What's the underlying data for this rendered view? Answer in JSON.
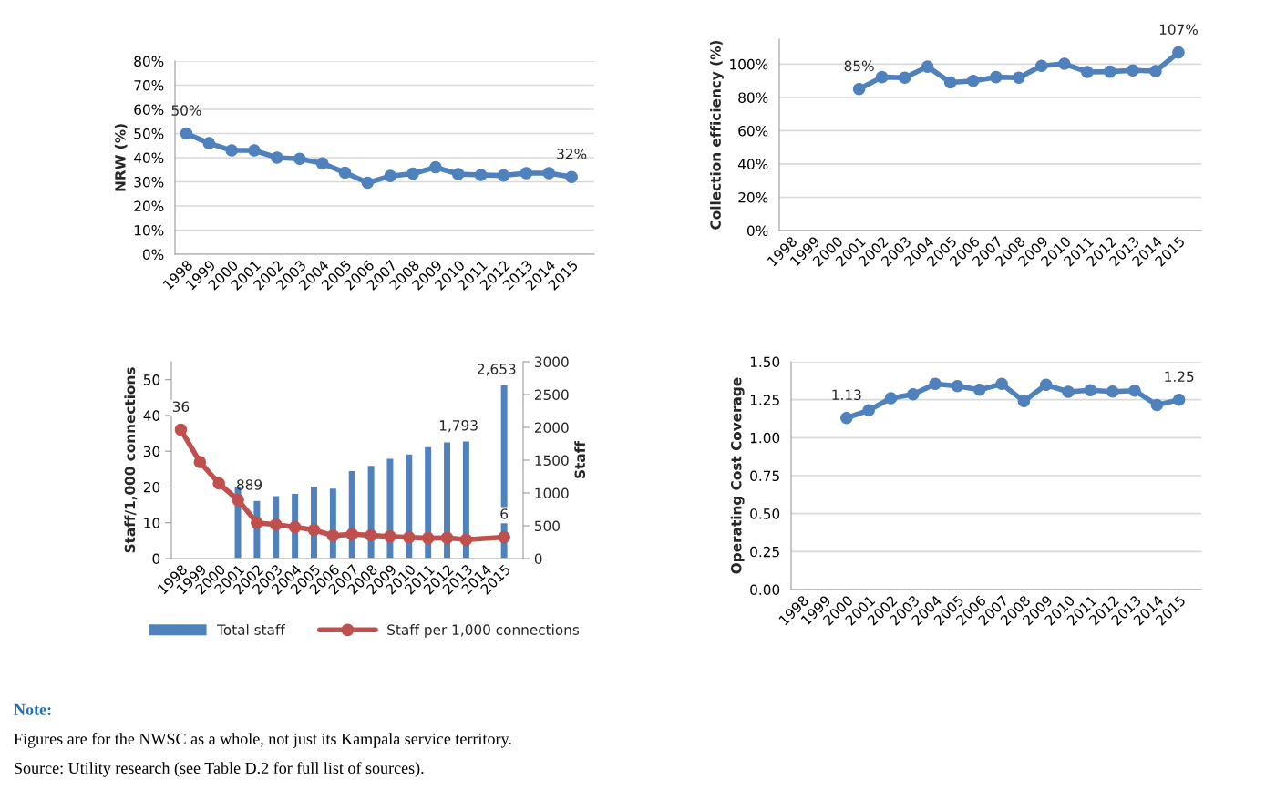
{
  "chart_data": [
    {
      "type": "line",
      "ylabel": "NRW (%)",
      "categories": [
        "1998",
        "1999",
        "2000",
        "2001",
        "2002",
        "2003",
        "2004",
        "2005",
        "2006",
        "2007",
        "2008",
        "2009",
        "2010",
        "2011",
        "2012",
        "2013",
        "2014",
        "2015"
      ],
      "series": [
        {
          "color": "#4f81bd",
          "values": [
            50,
            46,
            43,
            43,
            40,
            39.5,
            37.6,
            33.8,
            29.6,
            32.4,
            33.4,
            36,
            33.2,
            32.8,
            32.6,
            33.6,
            33.6,
            32
          ],
          "value_labels": [
            "50%",
            null,
            null,
            null,
            null,
            null,
            null,
            null,
            null,
            null,
            null,
            null,
            null,
            null,
            null,
            null,
            null,
            "32%"
          ]
        }
      ],
      "ylim": [
        0,
        80
      ],
      "yticks": [
        {
          "value": 0,
          "label": "0%"
        },
        {
          "value": 10,
          "label": "10%"
        },
        {
          "value": 20,
          "label": "20%"
        },
        {
          "value": 30,
          "label": "30%"
        },
        {
          "value": 40,
          "label": "40%"
        },
        {
          "value": 50,
          "label": "50%"
        },
        {
          "value": 60,
          "label": "60%"
        },
        {
          "value": 70,
          "label": "70%"
        },
        {
          "value": 80,
          "label": "80%"
        }
      ],
      "grid": "y",
      "marker": "circle",
      "line_style": "solid"
    },
    {
      "type": "line",
      "ylabel": "Collection efficiency (%)",
      "categories": [
        "1998",
        "1999",
        "2000",
        "2001",
        "2002",
        "2003",
        "2004",
        "2005",
        "2006",
        "2007",
        "2008",
        "2009",
        "2010",
        "2011",
        "2012",
        "2013",
        "2014",
        "2015"
      ],
      "series": [
        {
          "color": "#4f81bd",
          "values": [
            null,
            null,
            null,
            85,
            92.2,
            91.9,
            98.5,
            89,
            90,
            92.2,
            91.9,
            99,
            100.2,
            95.3,
            95.5,
            96.2,
            95.8,
            107
          ],
          "value_labels": [
            null,
            null,
            null,
            "85%",
            null,
            null,
            null,
            null,
            null,
            null,
            null,
            null,
            null,
            null,
            null,
            null,
            null,
            "107%"
          ]
        }
      ],
      "ylim": [
        0,
        115
      ],
      "yticks": [
        {
          "value": 0,
          "label": "0%"
        },
        {
          "value": 20,
          "label": "20%"
        },
        {
          "value": 40,
          "label": "40%"
        },
        {
          "value": 60,
          "label": "60%"
        },
        {
          "value": 80,
          "label": "80%"
        },
        {
          "value": 100,
          "label": "100%"
        }
      ],
      "grid": "y",
      "marker": "circle",
      "line_style": "solid"
    },
    {
      "type": "bar",
      "ylabel": "Staff/1,000 connections",
      "y2label": "Staff",
      "categories": [
        "1998",
        "1999",
        "2000",
        "2001",
        "2002",
        "2003",
        "2004",
        "2005",
        "2006",
        "2007",
        "2008",
        "2009",
        "2010",
        "2011",
        "2012",
        "2013",
        "2014",
        "2015"
      ],
      "series": [
        {
          "name": "Total staff",
          "type": "bar",
          "axis": "y2",
          "color": "#4f81bd",
          "values": [
            null,
            null,
            null,
            1101,
            889,
            960,
            995,
            1101,
            1076,
            1343,
            1424,
            1530,
            1596,
            1707,
            1780,
            1793,
            null,
            2653
          ],
          "value_labels": [
            null,
            null,
            null,
            null,
            "889",
            null,
            null,
            null,
            null,
            null,
            null,
            null,
            null,
            null,
            null,
            "1,793",
            null,
            "2,653"
          ]
        },
        {
          "name": "Staff per 1,000 connections",
          "type": "line",
          "color": "#c0504d",
          "values": [
            36,
            27,
            21,
            16.4,
            10,
            9.5,
            8.8,
            8,
            6.4,
            6.8,
            6.5,
            6.2,
            5.9,
            5.7,
            5.8,
            5.3,
            null,
            6
          ],
          "value_labels": [
            "36",
            null,
            null,
            null,
            null,
            null,
            null,
            null,
            null,
            null,
            null,
            null,
            null,
            null,
            null,
            null,
            null,
            "6"
          ]
        }
      ],
      "ylim": [
        0,
        55
      ],
      "yticks": [
        0,
        10,
        20,
        30,
        40,
        50
      ],
      "y2lim": [
        0,
        3000
      ],
      "y2ticks": [
        0,
        500,
        1000,
        1500,
        2000,
        2500,
        3000
      ],
      "grid": false,
      "legend": "bottom",
      "marker": "circle",
      "line_style": "solid"
    },
    {
      "type": "line",
      "ylabel": "Operating Cost Coverage",
      "categories": [
        "1998",
        "1999",
        "2000",
        "2001",
        "2002",
        "2003",
        "2004",
        "2005",
        "2006",
        "2007",
        "2008",
        "2009",
        "2010",
        "2011",
        "2012",
        "2013",
        "2014",
        "2015"
      ],
      "series": [
        {
          "color": "#4f81bd",
          "values": [
            null,
            null,
            1.13,
            1.18,
            1.26,
            1.285,
            1.354,
            1.34,
            1.315,
            1.354,
            1.24,
            1.348,
            1.302,
            1.312,
            1.304,
            1.31,
            1.215,
            1.25
          ],
          "value_labels": [
            null,
            null,
            "1.13",
            null,
            null,
            null,
            null,
            null,
            null,
            null,
            null,
            null,
            null,
            null,
            null,
            null,
            null,
            "1.25"
          ]
        }
      ],
      "ylim": [
        0,
        1.5
      ],
      "yticks": [
        {
          "value": 0,
          "label": "0.00"
        },
        {
          "value": 0.25,
          "label": "0.25"
        },
        {
          "value": 0.5,
          "label": "0.50"
        },
        {
          "value": 0.75,
          "label": "0.75"
        },
        {
          "value": 1.0,
          "label": "1.00"
        },
        {
          "value": 1.25,
          "label": "1.25"
        },
        {
          "value": 1.5,
          "label": "1.50"
        }
      ],
      "grid": "y",
      "marker": "circle",
      "line_style": "solid",
      "annotations": [
        "Note:",
        "Figures are for the NWSC as a whole, not just its Kampala service territory.",
        "Source: Utility research (see Table D.2 for full list of sources)."
      ]
    }
  ]
}
